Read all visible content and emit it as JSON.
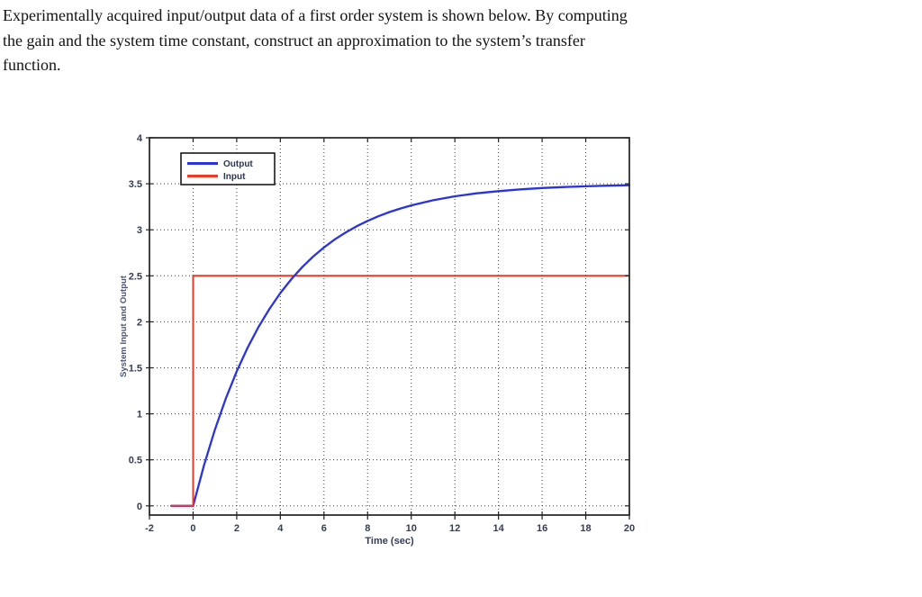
{
  "problem": {
    "lines": [
      "Experimentally acquired input/output data of a first order system is shown below. By computing",
      "the gain and the system time constant, construct an approximation to the system’s transfer",
      "function."
    ]
  },
  "chart_data": {
    "type": "line",
    "title": "",
    "xlabel": "Time (sec)",
    "ylabel": "System Input and Output",
    "xlim": [
      -2,
      20
    ],
    "ylim": [
      -0.1,
      4
    ],
    "x_ticks": [
      -2,
      0,
      2,
      4,
      6,
      8,
      10,
      12,
      14,
      16,
      18,
      20
    ],
    "y_ticks": [
      0,
      0.5,
      1,
      1.5,
      2,
      2.5,
      3,
      3.5,
      4
    ],
    "grid": "dotted",
    "grid_color": "#3a3a3a",
    "axis_box_color": "#222222",
    "legend": {
      "position": "top-left",
      "entries": [
        "Output",
        "Input"
      ]
    },
    "series": [
      {
        "name": "Output",
        "color": "#2a33e0",
        "width": 2.3,
        "points": [
          [
            -1,
            0
          ],
          [
            0,
            0
          ],
          [
            0.5,
            0.442
          ],
          [
            1,
            0.829
          ],
          [
            1.5,
            1.167
          ],
          [
            2,
            1.462
          ],
          [
            2.5,
            1.719
          ],
          [
            3,
            1.944
          ],
          [
            3.5,
            2.141
          ],
          [
            4,
            2.313
          ],
          [
            4.5,
            2.463
          ],
          [
            5,
            2.594
          ],
          [
            5.5,
            2.708
          ],
          [
            6,
            2.808
          ],
          [
            6.5,
            2.896
          ],
          [
            7,
            2.972
          ],
          [
            7.5,
            3.039
          ],
          [
            8,
            3.097
          ],
          [
            8.5,
            3.148
          ],
          [
            9,
            3.193
          ],
          [
            9.5,
            3.231
          ],
          [
            10,
            3.265
          ],
          [
            11,
            3.321
          ],
          [
            12,
            3.364
          ],
          [
            13,
            3.396
          ],
          [
            14,
            3.42
          ],
          [
            15,
            3.439
          ],
          [
            16,
            3.454
          ],
          [
            17,
            3.465
          ],
          [
            18,
            3.473
          ],
          [
            19,
            3.479
          ],
          [
            20,
            3.484
          ]
        ]
      },
      {
        "name": "Input",
        "color": "#ee3a28",
        "width": 2.0,
        "points": [
          [
            -1,
            0
          ],
          [
            0,
            0
          ],
          [
            0,
            2.5
          ],
          [
            20,
            2.5
          ]
        ]
      }
    ],
    "steady_state_output": 3.5,
    "input_step_amplitude": 2.5
  }
}
